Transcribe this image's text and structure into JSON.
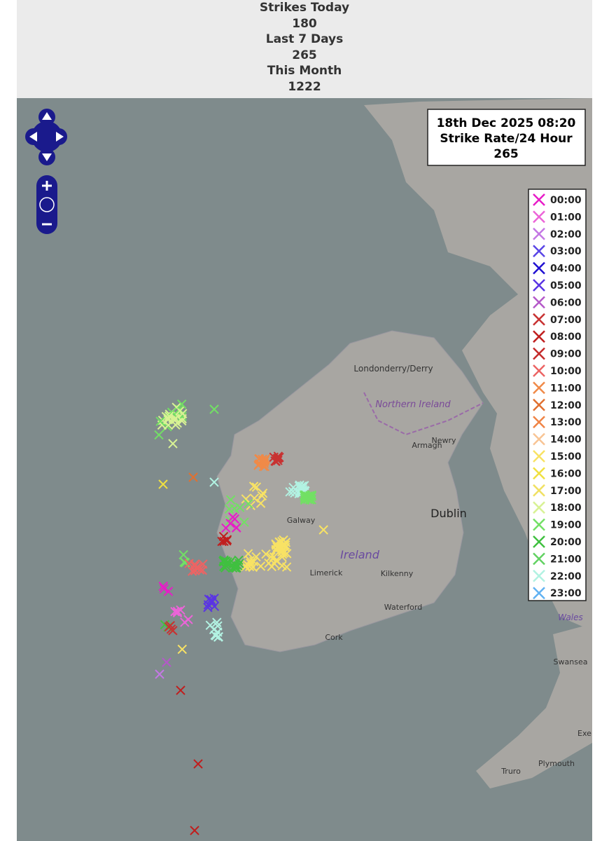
{
  "header": {
    "items": [
      {
        "label": "Strikes Today",
        "value": 180
      },
      {
        "label": "Last 7 Days",
        "value": 265
      },
      {
        "label": "This Month",
        "value": 1222
      }
    ]
  },
  "info": {
    "timestamp": "18th Dec 2025 08:20",
    "rate_label": "Strike Rate/24 Hour",
    "rate": 265
  },
  "legend": [
    {
      "label": "00:00",
      "color": "#e81cc8"
    },
    {
      "label": "01:00",
      "color": "#ec64d8"
    },
    {
      "label": "02:00",
      "color": "#c478e4"
    },
    {
      "label": "03:00",
      "color": "#5a46e6"
    },
    {
      "label": "04:00",
      "color": "#2010d2"
    },
    {
      "label": "05:00",
      "color": "#5a34e4"
    },
    {
      "label": "06:00",
      "color": "#b458c8"
    },
    {
      "label": "07:00",
      "color": "#c83232"
    },
    {
      "label": "08:00",
      "color": "#c01e1e"
    },
    {
      "label": "09:00",
      "color": "#c42a2a"
    },
    {
      "label": "10:00",
      "color": "#ec6464"
    },
    {
      "label": "11:00",
      "color": "#f08a48"
    },
    {
      "label": "12:00",
      "color": "#e07030"
    },
    {
      "label": "13:00",
      "color": "#f08446"
    },
    {
      "label": "14:00",
      "color": "#f8c494"
    },
    {
      "label": "15:00",
      "color": "#f8e264"
    },
    {
      "label": "16:00",
      "color": "#f0e040"
    },
    {
      "label": "17:00",
      "color": "#f0e062"
    },
    {
      "label": "18:00",
      "color": "#d8f294"
    },
    {
      "label": "19:00",
      "color": "#72e064"
    },
    {
      "label": "20:00",
      "color": "#40c040"
    },
    {
      "label": "21:00",
      "color": "#62d262"
    },
    {
      "label": "22:00",
      "color": "#b2f2e2"
    },
    {
      "label": "23:00",
      "color": "#62b2f2"
    }
  ],
  "map_labels": [
    "Londonderry/Derry",
    "Northern Ireland",
    "Armagh",
    "Newry",
    "Dublin",
    "Galway",
    "Ireland",
    "Limerick",
    "Kilkenny",
    "Waterford",
    "Cork",
    "Wales",
    "Swansea",
    "Plymouth",
    "Truro",
    "Exe"
  ]
}
